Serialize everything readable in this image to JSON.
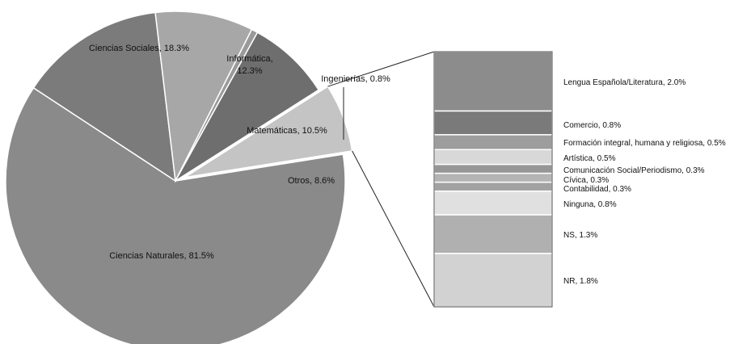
{
  "chart_data": [
    {
      "type": "pie",
      "slices": [
        {
          "label": "Ciencias Naturales, 81.5%",
          "name": "Ciencias Naturales",
          "value": 81.5,
          "color": "#8a8a8a"
        },
        {
          "label": "Ciencias Sociales, 18.3%",
          "name": "Ciencias Sociales",
          "value": 18.3,
          "color": "#7b7b7b"
        },
        {
          "label": "Informática,\n12.3%",
          "name": "Informática",
          "value": 12.3,
          "color": "#a7a7a7"
        },
        {
          "label": "Ingenierías, 0.8%",
          "name": "Ingenierías",
          "value": 0.8,
          "color": "#9a9a9a"
        },
        {
          "label": "Matemáticas, 10.5%",
          "name": "Matemáticas",
          "value": 10.5,
          "color": "#6e6e6e"
        },
        {
          "label": "Otros, 8.6%",
          "name": "Otros",
          "value": 8.6,
          "color": "#c4c4c4"
        }
      ]
    },
    {
      "type": "bar",
      "stacked": true,
      "parent": "Otros, 8.6%",
      "segments": [
        {
          "label": "Lengua Española/Literatura, 2.0%",
          "value": 2.0,
          "color": "#8c8c8c"
        },
        {
          "label": "Comercio, 0.8%",
          "value": 0.8,
          "color": "#7a7a7a"
        },
        {
          "label": "Formación integral, humana y religiosa, 0.5%",
          "value": 0.5,
          "color": "#9d9d9d"
        },
        {
          "label": "Artística, 0.5%",
          "value": 0.5,
          "color": "#d8d8d8"
        },
        {
          "label": "Comunicación Social/Periodismo, 0.3%",
          "value": 0.3,
          "color": "#969696"
        },
        {
          "label": "Cívica, 0.3%",
          "value": 0.3,
          "color": "#b4b4b4"
        },
        {
          "label": "Contabilidad, 0.3%",
          "value": 0.3,
          "color": "#a2a2a2"
        },
        {
          "label": "Ninguna, 0.8%",
          "value": 0.8,
          "color": "#e0e0e0"
        },
        {
          "label": "NS, 1.3%",
          "value": 1.3,
          "color": "#b0b0b0"
        },
        {
          "label": "NR, 1.8%",
          "value": 1.8,
          "color": "#d2d2d2"
        }
      ]
    }
  ]
}
